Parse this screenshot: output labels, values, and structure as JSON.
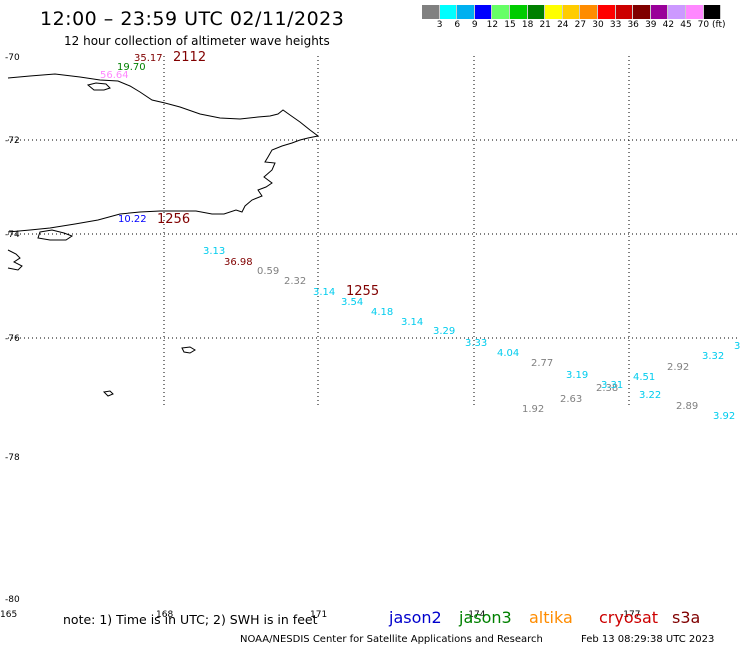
{
  "header": {
    "title": "12:00 – 23:59 UTC 02/11/2023",
    "subtitle": "12 hour collection of altimeter wave heights"
  },
  "colorbar": {
    "colors": [
      "#808080",
      "#00ffff",
      "#00b0f0",
      "#0000ff",
      "#66ff66",
      "#00cc00",
      "#008000",
      "#ffff00",
      "#ffcc00",
      "#ff8c00",
      "#ff0000",
      "#cc0000",
      "#800000",
      "#990099",
      "#cc99ff",
      "#ff88ff",
      "#000000"
    ],
    "labels": [
      "3",
      "6",
      "9",
      "12",
      "15",
      "18",
      "21",
      "24",
      "27",
      "30",
      "33",
      "36",
      "39",
      "42",
      "45",
      "70 (ft)"
    ]
  },
  "axes": {
    "lat_labels": [
      "-70",
      "-72",
      "-74",
      "-76",
      "-78",
      "-80"
    ],
    "lon_labels": [
      "165",
      "168",
      "171",
      "-174",
      "-177"
    ]
  },
  "observations": [
    {
      "value": "35.17",
      "color": "#800000"
    },
    {
      "value": "19.70",
      "color": "#008000"
    },
    {
      "value": "56.64",
      "color": "#ff88ff"
    },
    {
      "value": "10.22",
      "color": "#0000ff"
    },
    {
      "value": "3.13",
      "color": "#00ccee"
    },
    {
      "value": "36.98",
      "color": "#800000"
    },
    {
      "value": "0.59",
      "color": "#808080"
    },
    {
      "value": "2.32",
      "color": "#808080"
    },
    {
      "value": "3.14",
      "color": "#00ccee"
    },
    {
      "value": "3.54",
      "color": "#00ccee"
    },
    {
      "value": "4.18",
      "color": "#00ccee"
    },
    {
      "value": "3.14",
      "color": "#00ccee"
    },
    {
      "value": "3.29",
      "color": "#00ccee"
    },
    {
      "value": "3.33",
      "color": "#00ccee"
    },
    {
      "value": "4.04",
      "color": "#00ccee"
    },
    {
      "value": "2.77",
      "color": "#808080"
    },
    {
      "value": "3.19",
      "color": "#00ccee"
    },
    {
      "value": "2.38",
      "color": "#808080"
    },
    {
      "value": "3.31",
      "color": "#00ccee"
    },
    {
      "value": "4.51",
      "color": "#00ccee"
    },
    {
      "value": "2.92",
      "color": "#808080"
    },
    {
      "value": "3.32",
      "color": "#00ccee"
    },
    {
      "value": "3",
      "color": "#00ccee"
    },
    {
      "value": "3.22",
      "color": "#00ccee"
    },
    {
      "value": "2.89",
      "color": "#808080"
    },
    {
      "value": "1.92",
      "color": "#808080"
    },
    {
      "value": "2.63",
      "color": "#808080"
    },
    {
      "value": "3.92",
      "color": "#00ccee"
    }
  ],
  "times": [
    {
      "value": "2112",
      "color": "#800000"
    },
    {
      "value": "1256",
      "color": "#800000"
    },
    {
      "value": "1255",
      "color": "#800000"
    }
  ],
  "footer": {
    "note": "note:  1) Time is in UTC; 2) SWH is in feet",
    "satellites": [
      {
        "name": "jason2",
        "color": "#0000cc"
      },
      {
        "name": "jason3",
        "color": "#008000"
      },
      {
        "name": "altika",
        "color": "#ff8c00"
      },
      {
        "name": "cryosat",
        "color": "#cc0000"
      },
      {
        "name": "s3a",
        "color": "#800000"
      }
    ],
    "credit": "NOAA/NESDIS Center for Satellite Applications and Research",
    "timestamp": "Feb 13 08:29:38 UTC 2023"
  }
}
